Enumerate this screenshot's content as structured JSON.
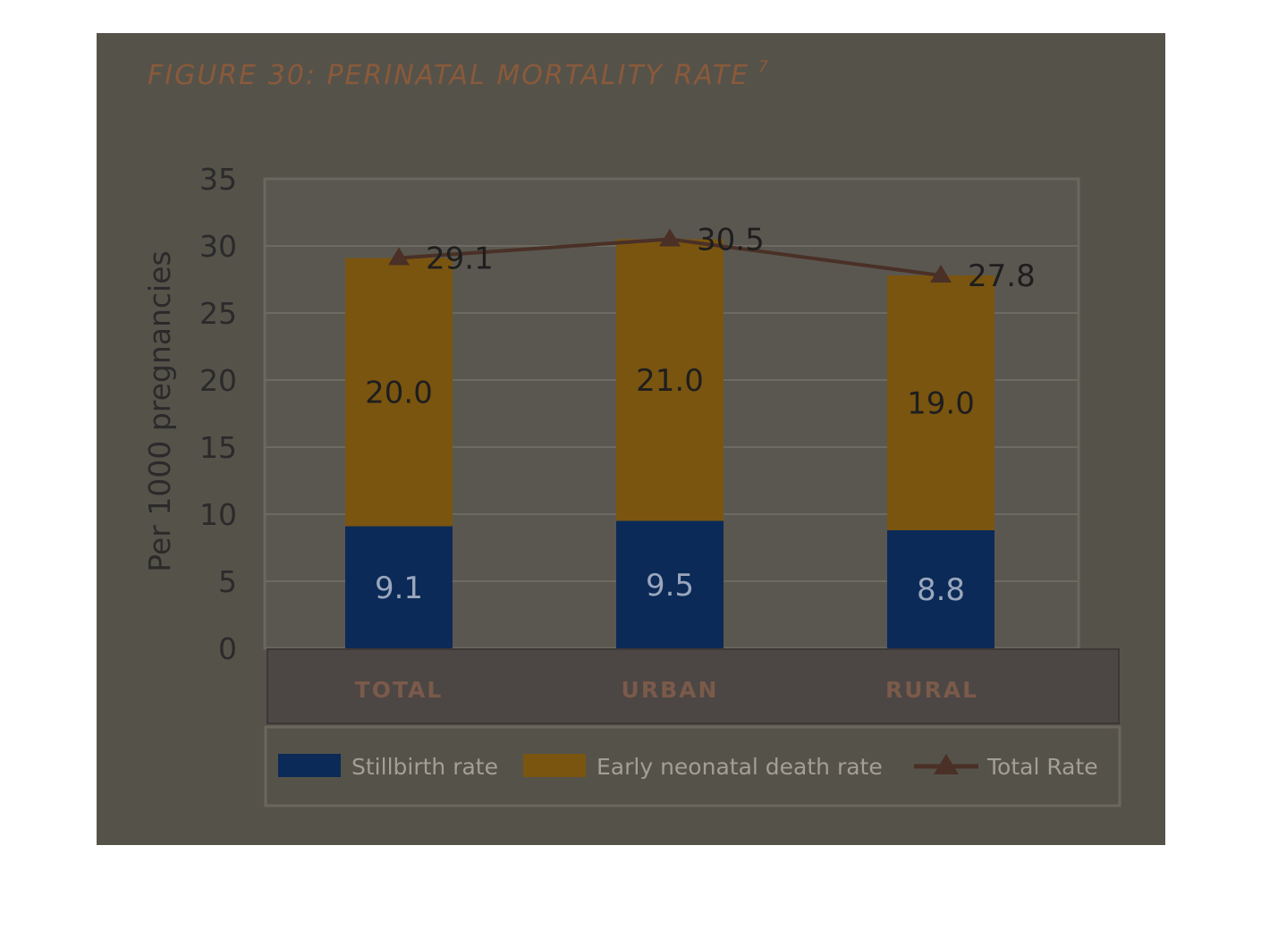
{
  "chart_data": {
    "type": "bar",
    "stacked": true,
    "title": "FIGURE 30: PERINATAL MORTALITY RATE",
    "title_superscript": "7",
    "ylabel": "Per 1000 pregnancies",
    "xlabel": "",
    "ylim": [
      0,
      35
    ],
    "yticks": [
      "0",
      "5",
      "10",
      "15",
      "20",
      "25",
      "30",
      "35"
    ],
    "grid": true,
    "legend_position": "bottom",
    "categories": [
      "TOTAL",
      "URBAN",
      "RURAL"
    ],
    "series": [
      {
        "name": "Stillbirth rate",
        "values": [
          9.1,
          9.5,
          8.8
        ],
        "labels": [
          "9.1",
          "9.5",
          "8.8"
        ],
        "color": "#0b2a57"
      },
      {
        "name": "Early neonatal death rate",
        "values": [
          20.0,
          21.0,
          19.0
        ],
        "labels": [
          "20.0",
          "21.0",
          "19.0"
        ],
        "color": "#7a5510"
      }
    ],
    "line": {
      "name": "Total Rate",
      "values": [
        29.1,
        30.5,
        27.8
      ],
      "labels": [
        "29.1",
        "30.5",
        "27.8"
      ],
      "color": "#4a3026"
    }
  },
  "colors": {
    "background": "#55524a",
    "plot_area": "#5a5750",
    "gridline": "#6d6a61",
    "axis_panel": "#4c4644"
  }
}
